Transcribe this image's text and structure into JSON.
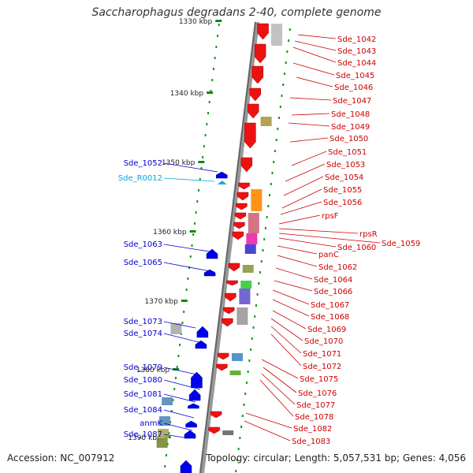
{
  "title": "Saccharophagus degradans 2-40, complete genome",
  "footer": {
    "accession": "Accession: NC_007912",
    "topology": "Topology: circular; Length: 5,057,531 bp; Genes: 4,056"
  },
  "ticks": [
    "1330 kbp",
    "1340 kbp",
    "1350 kbp",
    "1360 kbp",
    "1370 kbp",
    "1380 kbp",
    "1390 kbp"
  ],
  "left_labels": [
    {
      "text": "Sde_1052",
      "color": "#0000cc"
    },
    {
      "text": "Sde_R0012",
      "color": "#00aadd"
    },
    {
      "text": "Sde_1063",
      "color": "#0000cc"
    },
    {
      "text": "Sde_1065",
      "color": "#0000cc"
    },
    {
      "text": "Sde_1073",
      "color": "#0000cc"
    },
    {
      "text": "Sde_1074",
      "color": "#0000cc"
    },
    {
      "text": "Sde_1079",
      "color": "#0000cc"
    },
    {
      "text": "Sde_1080",
      "color": "#0000cc"
    },
    {
      "text": "Sde_1081",
      "color": "#0000cc"
    },
    {
      "text": "Sde_1084",
      "color": "#0000cc"
    },
    {
      "text": "anmK",
      "color": "#0000cc"
    },
    {
      "text": "Sde_1087",
      "color": "#0000cc"
    }
  ],
  "right_labels": [
    "Sde_1042",
    "Sde_1043",
    "Sde_1044",
    "Sde_1045",
    "Sde_1046",
    "Sde_1047",
    "Sde_1048",
    "Sde_1049",
    "Sde_1050",
    "Sde_1051",
    "Sde_1053",
    "Sde_1054",
    "Sde_1055",
    "Sde_1056",
    "rpsF",
    "rpsR",
    "Sde_1059",
    "Sde_1060",
    "panC",
    "Sde_1062",
    "Sde_1064",
    "Sde_1066",
    "Sde_1067",
    "Sde_1068",
    "Sde_1069",
    "Sde_1070",
    "Sde_1071",
    "Sde_1072",
    "Sde_1075",
    "Sde_1076",
    "Sde_1077",
    "Sde_1078",
    "Sde_1082",
    "Sde_1083"
  ],
  "colors": {
    "forward_gene": "#ee1111",
    "reverse_gene": "#0000ee",
    "backbone": "#888888",
    "tick_mark": "#118811",
    "label_red": "#cc0000"
  }
}
